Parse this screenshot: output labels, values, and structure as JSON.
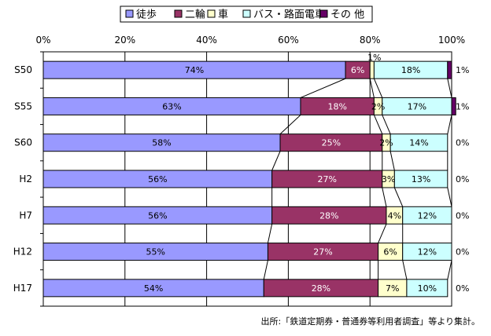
{
  "chart_data": {
    "type": "bar",
    "orientation": "horizontal",
    "stacked": "percent",
    "categories": [
      "S50",
      "S55",
      "S60",
      "H2",
      "H7",
      "H12",
      "H17"
    ],
    "series": [
      {
        "name": "徒歩",
        "color": "#9999ff",
        "values": [
          74,
          63,
          58,
          56,
          56,
          55,
          54
        ],
        "labels": [
          "74%",
          "63%",
          "58%",
          "56%",
          "56%",
          "55%",
          "54%"
        ]
      },
      {
        "name": "二輪",
        "color": "#993366",
        "values": [
          6,
          18,
          25,
          27,
          28,
          27,
          28
        ],
        "labels": [
          "6%",
          "18%",
          "25%",
          "27%",
          "28%",
          "27%",
          "28%"
        ]
      },
      {
        "name": "車",
        "color": "#ffffcc",
        "values": [
          1,
          2,
          2,
          3,
          4,
          6,
          7
        ],
        "labels": [
          "1%",
          "2%",
          "2%",
          "3%",
          "4%",
          "6%",
          "7%"
        ]
      },
      {
        "name": "バス・路面電車",
        "color": "#ccffff",
        "values": [
          18,
          17,
          14,
          13,
          12,
          12,
          10
        ],
        "labels": [
          "18%",
          "17%",
          "14%",
          "13%",
          "12%",
          "12%",
          "10%"
        ]
      },
      {
        "name": "その 他",
        "color": "#660066",
        "values": [
          1,
          1,
          0,
          0,
          0,
          0,
          0
        ],
        "labels": [
          "1%",
          "1%",
          "0%",
          "0%",
          "0%",
          "0%",
          "0%"
        ]
      }
    ],
    "x_ticks": [
      "0%",
      "20%",
      "40%",
      "60%",
      "80%",
      "100%"
    ],
    "xlim": [
      0,
      100
    ],
    "grid": true,
    "legend_position": "top",
    "series_lines": true
  },
  "source_note": "出所:「鉄道定期券・普通券等利用者調査」等より集計。"
}
